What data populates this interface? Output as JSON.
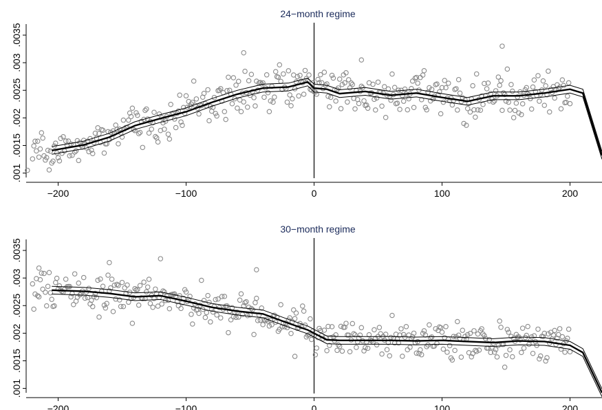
{
  "chart_data": [
    {
      "type": "scatter",
      "title": "24−month regime",
      "xlim": [
        -225,
        225
      ],
      "ylim": [
        0.00092,
        0.0037
      ],
      "x_ticks": [
        -200,
        -100,
        0,
        100,
        200
      ],
      "x_tick_labels": [
        "−200",
        "−100",
        "0",
        "100",
        "200"
      ],
      "y_ticks": [
        0.001,
        0.0015,
        0.002,
        0.0025,
        0.003,
        0.0035
      ],
      "y_tick_labels": [
        ".001",
        ".0015",
        ".002",
        ".0025",
        ".003",
        ".0035"
      ],
      "vertical_line_at": 0,
      "scatter_jitter_sd": 0.00018,
      "outliers": [
        {
          "x": 147,
          "y": 0.0033
        },
        {
          "x": 37,
          "y": 0.00305
        },
        {
          "x": -55,
          "y": 0.00318
        },
        {
          "x": -224,
          "y": 0.00105
        }
      ],
      "fit_line": {
        "x": [
          -205,
          -180,
          -160,
          -140,
          -120,
          -100,
          -80,
          -60,
          -40,
          -20,
          -5,
          0,
          10,
          20,
          40,
          60,
          80,
          100,
          120,
          140,
          160,
          180,
          200,
          210,
          225
        ],
        "y": [
          0.00141,
          0.00151,
          0.00165,
          0.00186,
          0.00199,
          0.00211,
          0.00228,
          0.00243,
          0.00254,
          0.00256,
          0.00265,
          0.00254,
          0.00252,
          0.00244,
          0.00248,
          0.00241,
          0.00245,
          0.00237,
          0.0023,
          0.0024,
          0.0024,
          0.00245,
          0.00252,
          0.00245,
          0.00132
        ]
      },
      "ci_half_width": 7e-05
    },
    {
      "type": "scatter",
      "title": "30−month regime",
      "xlim": [
        -225,
        225
      ],
      "ylim": [
        0.00092,
        0.0037
      ],
      "x_ticks": [
        -200,
        -100,
        0,
        100,
        200
      ],
      "x_tick_labels": [
        "−200",
        "−100",
        "0",
        "100",
        "200"
      ],
      "y_ticks": [
        0.001,
        0.0015,
        0.002,
        0.0025,
        0.003,
        0.0035
      ],
      "y_tick_labels": [
        ".001",
        ".0015",
        ".002",
        ".0025",
        ".003",
        ".0035"
      ],
      "vertical_line_at": 0,
      "scatter_jitter_sd": 0.00017,
      "outliers": [
        {
          "x": -120,
          "y": 0.00335
        },
        {
          "x": -160,
          "y": 0.00328
        },
        {
          "x": -215,
          "y": 0.00318
        },
        {
          "x": -45,
          "y": 0.00315
        },
        {
          "x": -15,
          "y": 0.00158
        }
      ],
      "fit_line": {
        "x": [
          -205,
          -180,
          -160,
          -140,
          -120,
          -100,
          -80,
          -60,
          -40,
          -20,
          -5,
          0,
          10,
          20,
          40,
          60,
          80,
          100,
          120,
          140,
          160,
          180,
          200,
          210,
          225
        ],
        "y": [
          0.00278,
          0.00276,
          0.00272,
          0.00266,
          0.00268,
          0.00258,
          0.00247,
          0.0024,
          0.00235,
          0.00218,
          0.00206,
          0.002,
          0.00188,
          0.00187,
          0.00187,
          0.00187,
          0.00186,
          0.00187,
          0.00185,
          0.00183,
          0.00186,
          0.00185,
          0.00178,
          0.00165,
          0.00092
        ]
      },
      "ci_half_width": 7e-05
    }
  ]
}
